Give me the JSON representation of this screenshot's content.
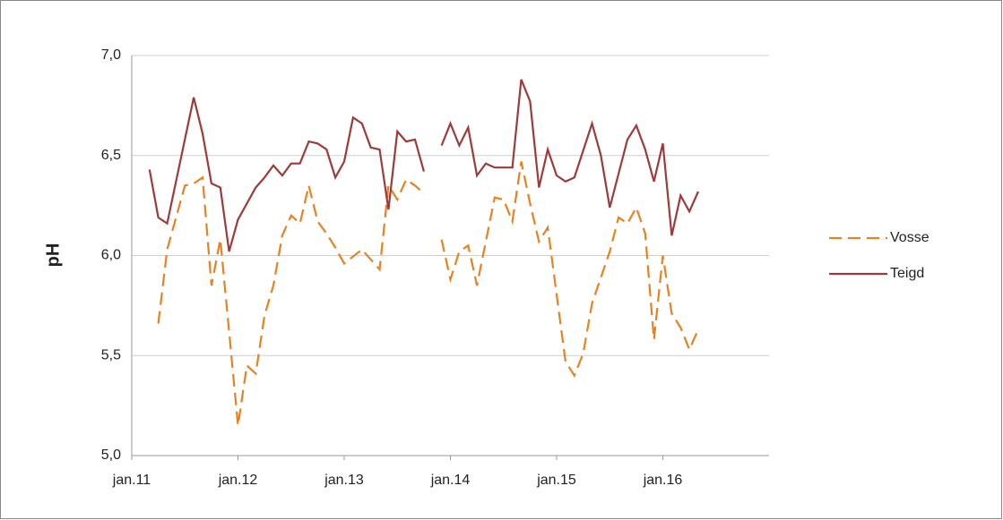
{
  "chart_data": {
    "type": "line",
    "ylabel": "pH",
    "ylim": [
      5,
      7
    ],
    "yticks": [
      {
        "value": 5,
        "label": "5,0"
      },
      {
        "value": 5.5,
        "label": "5,5"
      },
      {
        "value": 6,
        "label": "6,0"
      },
      {
        "value": 6.5,
        "label": "6,5"
      },
      {
        "value": 7,
        "label": "7,0"
      }
    ],
    "xlim": [
      "2011-01",
      "2017-01"
    ],
    "xticks": [
      {
        "value": "2011-01",
        "label": "jan.11"
      },
      {
        "value": "2012-01",
        "label": "jan.12"
      },
      {
        "value": "2013-01",
        "label": "jan.13"
      },
      {
        "value": "2014-01",
        "label": "jan.14"
      },
      {
        "value": "2015-01",
        "label": "jan.15"
      },
      {
        "value": "2016-01",
        "label": "jan.16"
      }
    ],
    "grid": true,
    "legend": "right",
    "series": [
      {
        "name": "Vosse",
        "color": "#e8821e",
        "dashed": true,
        "x": [
          "2011-04",
          "2011-05",
          "2011-07",
          "2011-08",
          "2011-09",
          "2011-10",
          "2011-11",
          "2011-12",
          "2012-01",
          "2012-02",
          "2012-03",
          "2012-04",
          "2012-05",
          "2012-06",
          "2012-07",
          "2012-08",
          "2012-09",
          "2012-10",
          "2012-11",
          "2012-12",
          "2013-01",
          "2013-03",
          "2013-05",
          "2013-06",
          "2013-07",
          "2013-08",
          "2013-09",
          "2013-10",
          "2013-11",
          "2013-12",
          "2014-01",
          "2014-02",
          "2014-03",
          "2014-04",
          "2014-06",
          "2014-07",
          "2014-08",
          "2014-09",
          "2014-10",
          "2014-11",
          "2014-12",
          "2015-02",
          "2015-03",
          "2015-04",
          "2015-05",
          "2015-07",
          "2015-08",
          "2015-09",
          "2015-10",
          "2015-11",
          "2015-12",
          "2016-01",
          "2016-02",
          "2016-03",
          "2016-04",
          "2016-05"
        ],
        "values": [
          5.66,
          6.03,
          6.35,
          6.36,
          6.39,
          5.85,
          6.08,
          5.62,
          5.15,
          5.45,
          5.41,
          5.7,
          5.85,
          6.1,
          6.2,
          6.16,
          6.35,
          6.17,
          6.11,
          6.04,
          5.96,
          6.03,
          5.93,
          6.35,
          6.28,
          6.38,
          6.35,
          6.31,
          null,
          6.08,
          5.88,
          6.02,
          6.05,
          5.85,
          6.29,
          6.28,
          6.17,
          6.47,
          6.26,
          6.07,
          6.14,
          5.47,
          5.4,
          5.51,
          5.76,
          6.02,
          6.19,
          6.16,
          6.24,
          6.11,
          5.58,
          6.0,
          5.71,
          5.64,
          5.53,
          5.63
        ]
      },
      {
        "name": "Teigd",
        "color": "#9e3a3a",
        "dashed": false,
        "x": [
          "2011-03",
          "2011-04",
          "2011-05",
          "2011-08",
          "2011-09",
          "2011-10",
          "2011-11",
          "2011-12",
          "2012-01",
          "2012-03",
          "2012-04",
          "2012-05",
          "2012-06",
          "2012-07",
          "2012-08",
          "2012-09",
          "2012-10",
          "2012-11",
          "2012-12",
          "2013-01",
          "2013-02",
          "2013-03",
          "2013-04",
          "2013-05",
          "2013-06",
          "2013-07",
          "2013-08",
          "2013-09",
          "2013-10",
          "2013-11",
          "2013-12",
          "2014-01",
          "2014-02",
          "2014-03",
          "2014-04",
          "2014-05",
          "2014-06",
          "2014-08",
          "2014-09",
          "2014-10",
          "2014-11",
          "2014-12",
          "2015-01",
          "2015-02",
          "2015-03",
          "2015-05",
          "2015-06",
          "2015-07",
          "2015-09",
          "2015-10",
          "2015-11",
          "2015-12",
          "2016-01",
          "2016-02",
          "2016-03",
          "2016-04",
          "2016-05"
        ],
        "values": [
          6.43,
          6.19,
          6.16,
          6.79,
          6.61,
          6.36,
          6.34,
          6.02,
          6.18,
          6.34,
          6.39,
          6.45,
          6.4,
          6.46,
          6.46,
          6.57,
          6.56,
          6.53,
          6.39,
          6.47,
          6.69,
          6.66,
          6.54,
          6.53,
          6.23,
          6.62,
          6.57,
          6.58,
          6.42,
          null,
          6.55,
          6.66,
          6.55,
          6.64,
          6.4,
          6.46,
          6.44,
          6.44,
          6.88,
          6.77,
          6.34,
          6.53,
          6.4,
          6.37,
          6.39,
          6.66,
          6.5,
          6.24,
          6.58,
          6.65,
          6.53,
          6.37,
          6.56,
          6.1,
          6.3,
          6.22,
          6.32
        ]
      }
    ]
  }
}
